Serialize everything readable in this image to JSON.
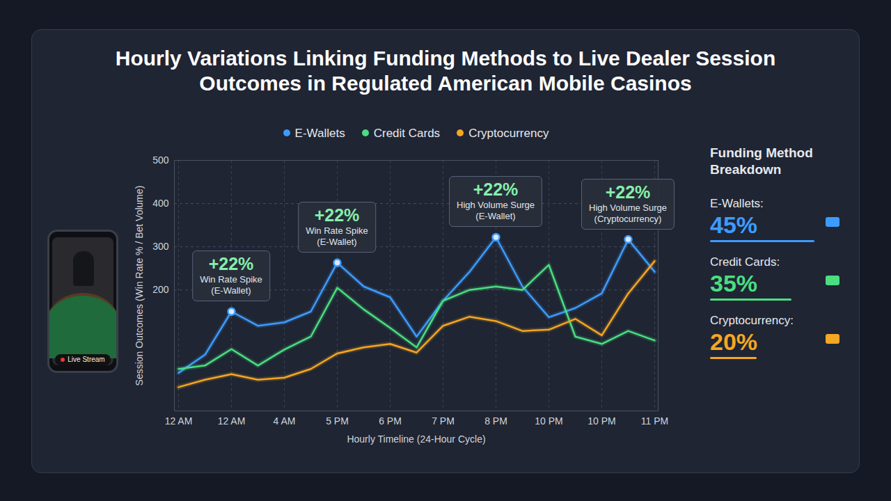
{
  "chart_data": {
    "type": "line",
    "title": "Hourly Variations Linking Funding Methods to Live Dealer Session Outcomes in Regulated American Mobile Casinos",
    "x_label": "Hourly Timeline (24-Hour Cycle)",
    "y_label": "Session Outcomes (Win Rate % / Bet Volume)",
    "categories": [
      "12 AM",
      null,
      "12 AM",
      null,
      "4 AM",
      null,
      "5 PM",
      null,
      "6 PM",
      null,
      "7 PM",
      null,
      "8 PM",
      null,
      "10 PM",
      null,
      "10 PM",
      null,
      "11 PM"
    ],
    "series": [
      {
        "name": "E-Wallets",
        "color": "#3d9bff",
        "values": [
          8,
          50,
          150,
          117,
          125,
          150,
          263,
          208,
          183,
          92,
          175,
          242,
          322,
          208,
          137,
          158,
          192,
          317,
          242
        ]
      },
      {
        "name": "Credit Cards",
        "color": "#4ade80",
        "values": [
          17,
          25,
          63,
          25,
          62,
          92,
          205,
          155,
          112,
          67,
          175,
          200,
          208,
          200,
          258,
          92,
          75,
          105,
          83
        ]
      },
      {
        "name": "Cryptocurrency",
        "color": "#f5a623",
        "values": [
          -25,
          -8,
          5,
          -8,
          -3,
          17,
          53,
          67,
          75,
          55,
          117,
          138,
          128,
          105,
          108,
          133,
          95,
          192,
          267
        ]
      }
    ],
    "ylim": [
      -80,
      500
    ],
    "yticks": [
      200,
      300,
      400,
      500
    ],
    "grid": true,
    "legend": "top",
    "annotations": [
      {
        "series": "E-Wallets",
        "point": 2,
        "text": "+22%",
        "note": "Win Rate Spike (E-Wallet)"
      },
      {
        "series": "E-Wallets",
        "point": 6,
        "text": "+22%",
        "note": "Win Rate Spike (E-Wallet)"
      },
      {
        "series": "E-Wallets",
        "point": 12,
        "text": "+22%",
        "note": "High Volume Surge (E-Wallet)"
      },
      {
        "series": "E-Wallets",
        "point": 17,
        "text": "+22%",
        "note": "High Volume Surge (Cryptocurrency)"
      }
    ],
    "breakdown": {
      "title": "Funding Method Breakdown",
      "items": [
        {
          "name": "E-Wallets:",
          "value": 45,
          "value_label": "45%",
          "color": "#3d9bff"
        },
        {
          "name": "Credit Cards:",
          "value": 35,
          "value_label": "35%",
          "color": "#4ade80"
        },
        {
          "name": "Cryptocurrency:",
          "value": 20,
          "value_label": "20%",
          "color": "#f5a623"
        }
      ]
    },
    "phone_label": "Live Stream"
  }
}
